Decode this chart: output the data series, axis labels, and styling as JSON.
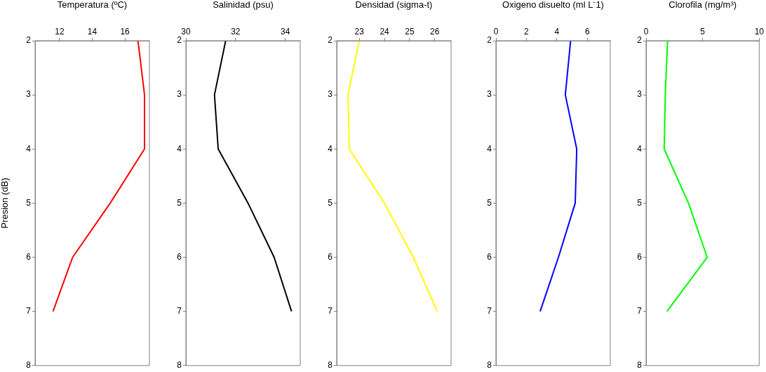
{
  "chart_data": [
    {
      "type": "line",
      "xlabel": "Temperatura (ºC)",
      "ylabel": "Presion (dB)",
      "xlim": [
        10.5,
        17.5
      ],
      "xticks": [
        12,
        14,
        16
      ],
      "ylim": [
        8,
        2
      ],
      "yticks": [
        2,
        3,
        4,
        5,
        6,
        7,
        8
      ],
      "series": [
        {
          "color": "#ff0000",
          "x": [
            16.8,
            17.2,
            17.2,
            15.1,
            12.8,
            11.6
          ],
          "values": [
            2,
            3,
            4,
            5,
            6,
            7
          ]
        }
      ]
    },
    {
      "type": "line",
      "xlabel": "Salinidad (psu)",
      "xlim": [
        30,
        34.6
      ],
      "xticks": [
        30,
        32,
        34
      ],
      "ylim": [
        8,
        2
      ],
      "yticks": [
        2,
        3,
        4,
        5,
        6,
        7,
        8
      ],
      "series": [
        {
          "color": "#000000",
          "x": [
            31.6,
            31.15,
            31.3,
            32.5,
            33.55,
            34.25
          ],
          "values": [
            2,
            3,
            4,
            5,
            6,
            7
          ]
        }
      ]
    },
    {
      "type": "line",
      "xlabel": "Densidad (sigma-t)",
      "xlim": [
        22.1,
        26.65
      ],
      "xticks": [
        23,
        24,
        25,
        26
      ],
      "ylim": [
        8,
        2
      ],
      "yticks": [
        2,
        3,
        4,
        5,
        6,
        7,
        8
      ],
      "series": [
        {
          "color": "#ffff00",
          "x": [
            23.0,
            22.55,
            22.6,
            24.0,
            25.15,
            26.1
          ],
          "values": [
            2,
            3,
            4,
            5,
            6,
            7
          ]
        }
      ]
    },
    {
      "type": "line",
      "xlabel": "Oxigeno disuelto (ml L⁻1)",
      "xlim": [
        0,
        7.5
      ],
      "xticks": [
        0,
        2,
        4,
        6
      ],
      "ylim": [
        8,
        2
      ],
      "yticks": [
        2,
        3,
        4,
        5,
        6,
        7,
        8
      ],
      "series": [
        {
          "color": "#0000ff",
          "x": [
            4.9,
            4.55,
            5.3,
            5.2,
            4.1,
            2.9
          ],
          "values": [
            2,
            3,
            4,
            5,
            6,
            7
          ]
        }
      ]
    },
    {
      "type": "line",
      "xlabel": "Clorofila (mg/m³)",
      "xlim": [
        0,
        10
      ],
      "xticks": [
        0,
        5,
        10
      ],
      "ylim": [
        8,
        2
      ],
      "yticks": [
        2,
        3,
        4,
        5,
        6,
        7,
        8
      ],
      "series": [
        {
          "color": "#00ff00",
          "x": [
            1.9,
            1.7,
            1.6,
            3.75,
            5.4,
            1.85
          ],
          "values": [
            2,
            3,
            4,
            5,
            6,
            7
          ]
        }
      ]
    }
  ]
}
